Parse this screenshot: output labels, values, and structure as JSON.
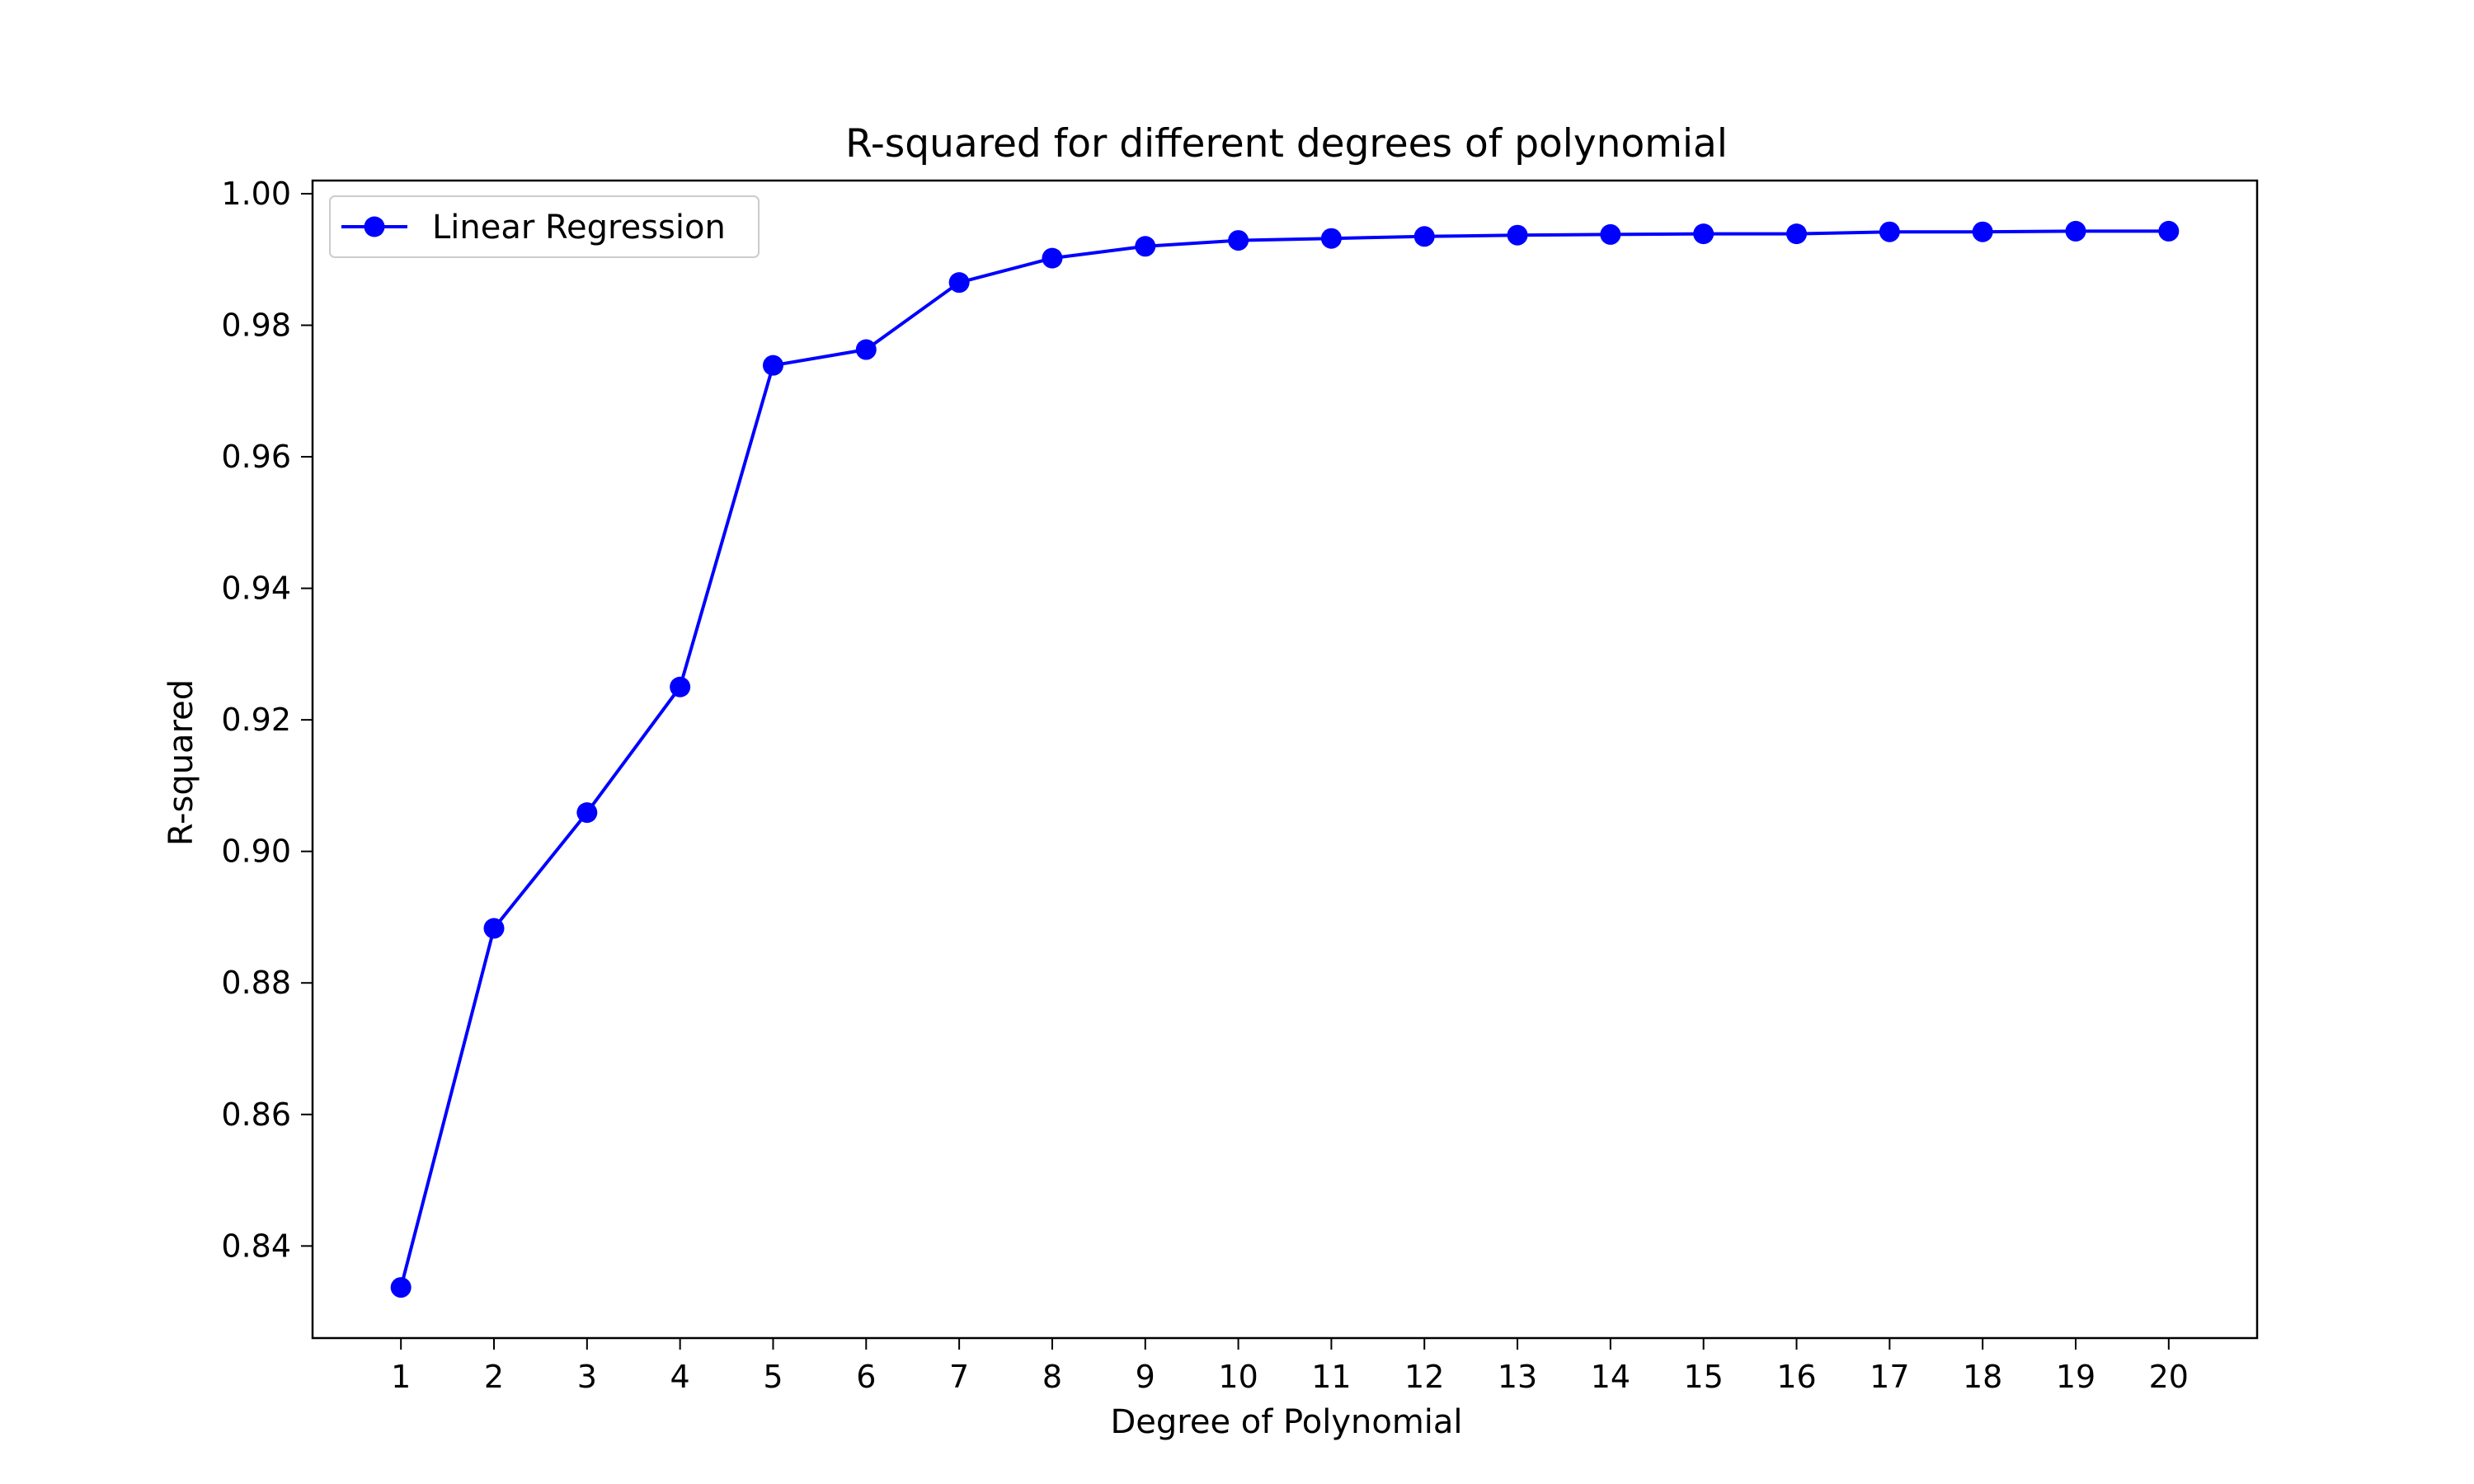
{
  "chart_data": {
    "type": "line",
    "title": "R-squared for different degrees of polynomial",
    "xlabel": "Degree of Polynomial",
    "ylabel": "R-squared",
    "x": [
      1,
      2,
      3,
      4,
      5,
      6,
      7,
      8,
      9,
      10,
      11,
      12,
      13,
      14,
      15,
      16,
      17,
      18,
      19,
      20
    ],
    "xlim": [
      0.05,
      20.95
    ],
    "ylim": [
      0.826,
      1.002
    ],
    "yticks": [
      0.84,
      0.86,
      0.88,
      0.9,
      0.92,
      0.94,
      0.96,
      0.98,
      1.0
    ],
    "ytick_labels": [
      "0.84",
      "0.86",
      "0.88",
      "0.90",
      "0.92",
      "0.94",
      "0.96",
      "0.98",
      "1.00"
    ],
    "xtick_labels": [
      "1",
      "2",
      "3",
      "4",
      "5",
      "6",
      "7",
      "8",
      "9",
      "10",
      "11",
      "12",
      "13",
      "14",
      "15",
      "16",
      "17",
      "18",
      "19",
      "20"
    ],
    "series": [
      {
        "name": "Linear Regression",
        "color": "#0000ff",
        "marker": "circle",
        "values": [
          0.8337,
          0.8883,
          0.9059,
          0.925,
          0.9739,
          0.9763,
          0.9865,
          0.9902,
          0.992,
          0.9929,
          0.9932,
          0.9935,
          0.9937,
          0.9938,
          0.9939,
          0.9939,
          0.9942,
          0.9942,
          0.9943,
          0.9943
        ]
      }
    ],
    "grid": false,
    "legend_position": "top-left"
  }
}
